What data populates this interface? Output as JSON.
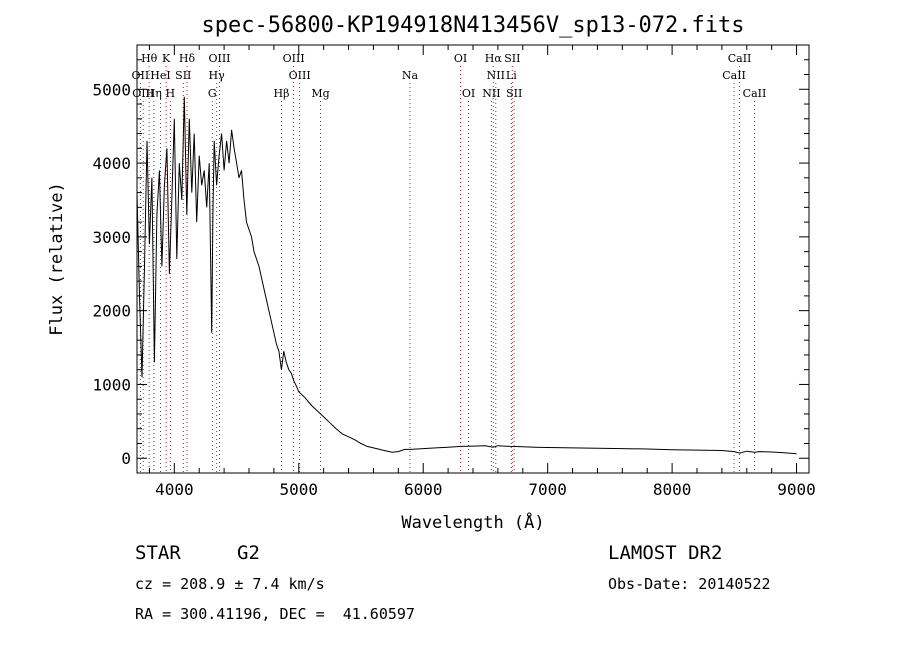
{
  "chart_data": {
    "type": "line",
    "title": "spec-56800-KP194918N413456V_sp13-072.fits",
    "xlabel": "Wavelength (Å)",
    "ylabel": "Flux (relative)",
    "xlim": [
      3700,
      9100
    ],
    "ylim": [
      -200,
      5600
    ],
    "xticks": [
      "4000",
      "5000",
      "6000",
      "7000",
      "8000",
      "9000"
    ],
    "yticks": [
      "0",
      "1000",
      "2000",
      "3000",
      "4000",
      "5000"
    ],
    "grid": false,
    "spectrum": {
      "x": [
        3700,
        3720,
        3740,
        3760,
        3780,
        3800,
        3820,
        3840,
        3860,
        3880,
        3900,
        3920,
        3940,
        3960,
        3980,
        4000,
        4020,
        4040,
        4060,
        4080,
        4100,
        4120,
        4140,
        4160,
        4180,
        4200,
        4220,
        4240,
        4260,
        4280,
        4300,
        4310,
        4320,
        4340,
        4360,
        4380,
        4400,
        4420,
        4440,
        4460,
        4480,
        4500,
        4520,
        4540,
        4560,
        4580,
        4600,
        4620,
        4640,
        4660,
        4680,
        4700,
        4720,
        4740,
        4760,
        4780,
        4800,
        4820,
        4840,
        4860,
        4880,
        4900,
        4920,
        4940,
        4960,
        4980,
        5000,
        5050,
        5100,
        5150,
        5200,
        5250,
        5300,
        5350,
        5400,
        5450,
        5500,
        5550,
        5600,
        5650,
        5700,
        5750,
        5800,
        5850,
        5900,
        6000,
        6100,
        6200,
        6300,
        6400,
        6500,
        6560,
        6600,
        6700,
        6800,
        6900,
        7000,
        7200,
        7400,
        7600,
        7800,
        8000,
        8200,
        8400,
        8500,
        8542,
        8600,
        8662,
        8700,
        8800,
        8900,
        9000
      ],
      "y": [
        3600,
        2200,
        1100,
        2600,
        4300,
        2900,
        3800,
        1300,
        3300,
        3900,
        2600,
        3700,
        4200,
        2500,
        3500,
        4600,
        2700,
        4000,
        3500,
        4900,
        3300,
        4600,
        3600,
        4400,
        3200,
        4100,
        3700,
        3900,
        3400,
        4000,
        1700,
        3300,
        4300,
        3700,
        4100,
        4400,
        3900,
        4300,
        4000,
        4450,
        4200,
        4000,
        3800,
        3900,
        3500,
        3200,
        3100,
        3000,
        2800,
        2700,
        2600,
        2450,
        2300,
        2150,
        2000,
        1850,
        1700,
        1550,
        1450,
        1200,
        1450,
        1300,
        1200,
        1150,
        1050,
        980,
        900,
        820,
        720,
        640,
        560,
        480,
        400,
        330,
        290,
        250,
        200,
        160,
        140,
        120,
        100,
        80,
        90,
        120,
        120,
        130,
        140,
        150,
        160,
        165,
        170,
        150,
        170,
        160,
        155,
        150,
        145,
        140,
        135,
        130,
        125,
        115,
        110,
        105,
        90,
        70,
        95,
        80,
        90,
        85,
        75,
        60
      ]
    },
    "lines": [
      {
        "label": "Hθ",
        "x": 3798,
        "row": 0
      },
      {
        "label": "K",
        "x": 3934,
        "row": 0
      },
      {
        "label": "Hδ",
        "x": 4102,
        "row": 0
      },
      {
        "label": "OIII",
        "x": 4363,
        "row": 0
      },
      {
        "label": "OIII",
        "x": 4959,
        "row": 0
      },
      {
        "label": "OI",
        "x": 6300,
        "row": 0
      },
      {
        "label": "Hα",
        "x": 6563,
        "row": 0
      },
      {
        "label": "SII",
        "x": 6716,
        "row": 0
      },
      {
        "label": "CaII",
        "x": 8542,
        "row": 0
      },
      {
        "label": "OII",
        "x": 3727,
        "row": 1
      },
      {
        "label": "HeI",
        "x": 3889,
        "row": 1
      },
      {
        "label": "SII",
        "x": 4072,
        "row": 1
      },
      {
        "label": "Hγ",
        "x": 4340,
        "row": 1
      },
      {
        "label": "OIII",
        "x": 5007,
        "row": 1
      },
      {
        "label": "Na",
        "x": 5893,
        "row": 1
      },
      {
        "label": "NII",
        "x": 6583,
        "row": 1
      },
      {
        "label": "Li",
        "x": 6708,
        "row": 1
      },
      {
        "label": "CaII",
        "x": 8498,
        "row": 1
      },
      {
        "label": "OIII",
        "x": 3750,
        "row": 2
      },
      {
        "label": "Hη",
        "x": 3835,
        "row": 2
      },
      {
        "label": "H",
        "x": 3968,
        "row": 2
      },
      {
        "label": "G",
        "x": 4305,
        "row": 2
      },
      {
        "label": "Hβ",
        "x": 4861,
        "row": 2
      },
      {
        "label": "Mg",
        "x": 5175,
        "row": 2
      },
      {
        "label": "OI",
        "x": 6364,
        "row": 2
      },
      {
        "label": "NII",
        "x": 6548,
        "row": 2
      },
      {
        "label": "SII",
        "x": 6731,
        "row": 2
      },
      {
        "label": "CaII",
        "x": 8662,
        "row": 2
      }
    ]
  },
  "info": {
    "object_class": "STAR",
    "subclass": "G2",
    "survey": "LAMOST DR2",
    "redshift": "cz = 208.9 ± 7.4 km/s",
    "obs_date": "Obs-Date: 20140522",
    "coords": "RA = 300.41196, DEC =  41.60597"
  }
}
